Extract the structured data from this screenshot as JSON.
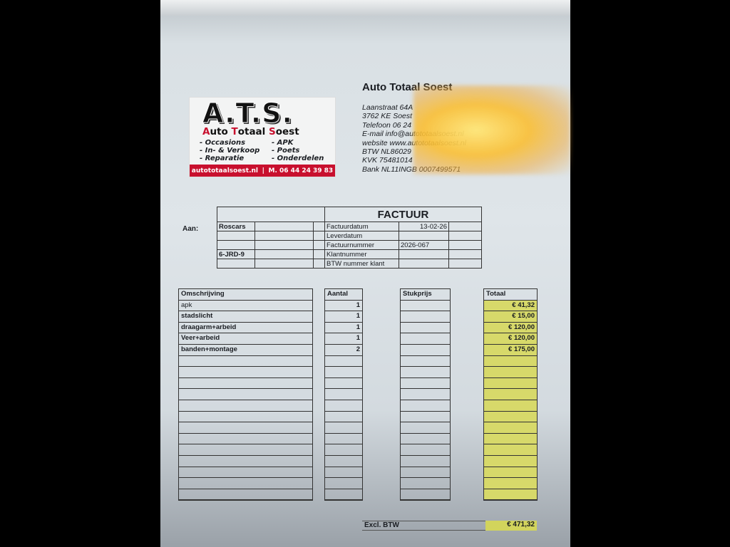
{
  "logo": {
    "mark": "A.T.S.",
    "name_parts": [
      "A",
      "uto ",
      "T",
      "otaal ",
      "S",
      "oest"
    ],
    "services_left": [
      "- Occasions",
      "- In- & Verkoop",
      "- Reparatie"
    ],
    "services_right": [
      "- APK",
      "- Poets",
      "- Onderdelen"
    ],
    "website": "autototaalsoest.nl",
    "mobile": "M. 06 44 24 39 83"
  },
  "company": {
    "name": "Auto Totaal Soest",
    "lines": [
      "Laanstraat 64A",
      "3762 KE Soest",
      "Telefoon 06 24",
      "E-mail info@autototaalsoest.nl",
      "website www.autototaalsoest.nl",
      "BTW NL86029",
      "KVK 75481014",
      "Bank NL11INGB 0007499571"
    ]
  },
  "header": {
    "aan_label": "Aan:",
    "customer": "Roscars",
    "plate": "6-JRD-9",
    "title": "FACTUUR",
    "fields": [
      {
        "label": "Factuurdatum",
        "value": "13-02-26"
      },
      {
        "label": "Leverdatum",
        "value": ""
      },
      {
        "label": "Factuurnummer",
        "value": "2026-067"
      },
      {
        "label": "Klantnummer",
        "value": ""
      },
      {
        "label": "BTW nummer klant",
        "value": ""
      }
    ]
  },
  "lines": {
    "headers": {
      "desc": "Omschrijving",
      "qty": "Aantal",
      "unit": "Stukprijs",
      "total": "Totaal"
    },
    "items": [
      {
        "desc": "apk",
        "qty": "1",
        "unit": "",
        "total": "€ 41,32"
      },
      {
        "desc": "stadslicht",
        "qty": "1",
        "unit": "",
        "total": "€ 15,00"
      },
      {
        "desc": "draagarm+arbeid",
        "qty": "1",
        "unit": "",
        "total": "€ 120,00"
      },
      {
        "desc": "Veer+arbeid",
        "qty": "1",
        "unit": "",
        "total": "€ 120,00"
      },
      {
        "desc": "banden+montage",
        "qty": "2",
        "unit": "",
        "total": "€ 175,00"
      }
    ]
  },
  "summary": {
    "label": "Excl. BTW",
    "value": "€ 471,32"
  },
  "colors": {
    "logo_red": "#c8102e",
    "total_highlight": "#d7d96a"
  }
}
